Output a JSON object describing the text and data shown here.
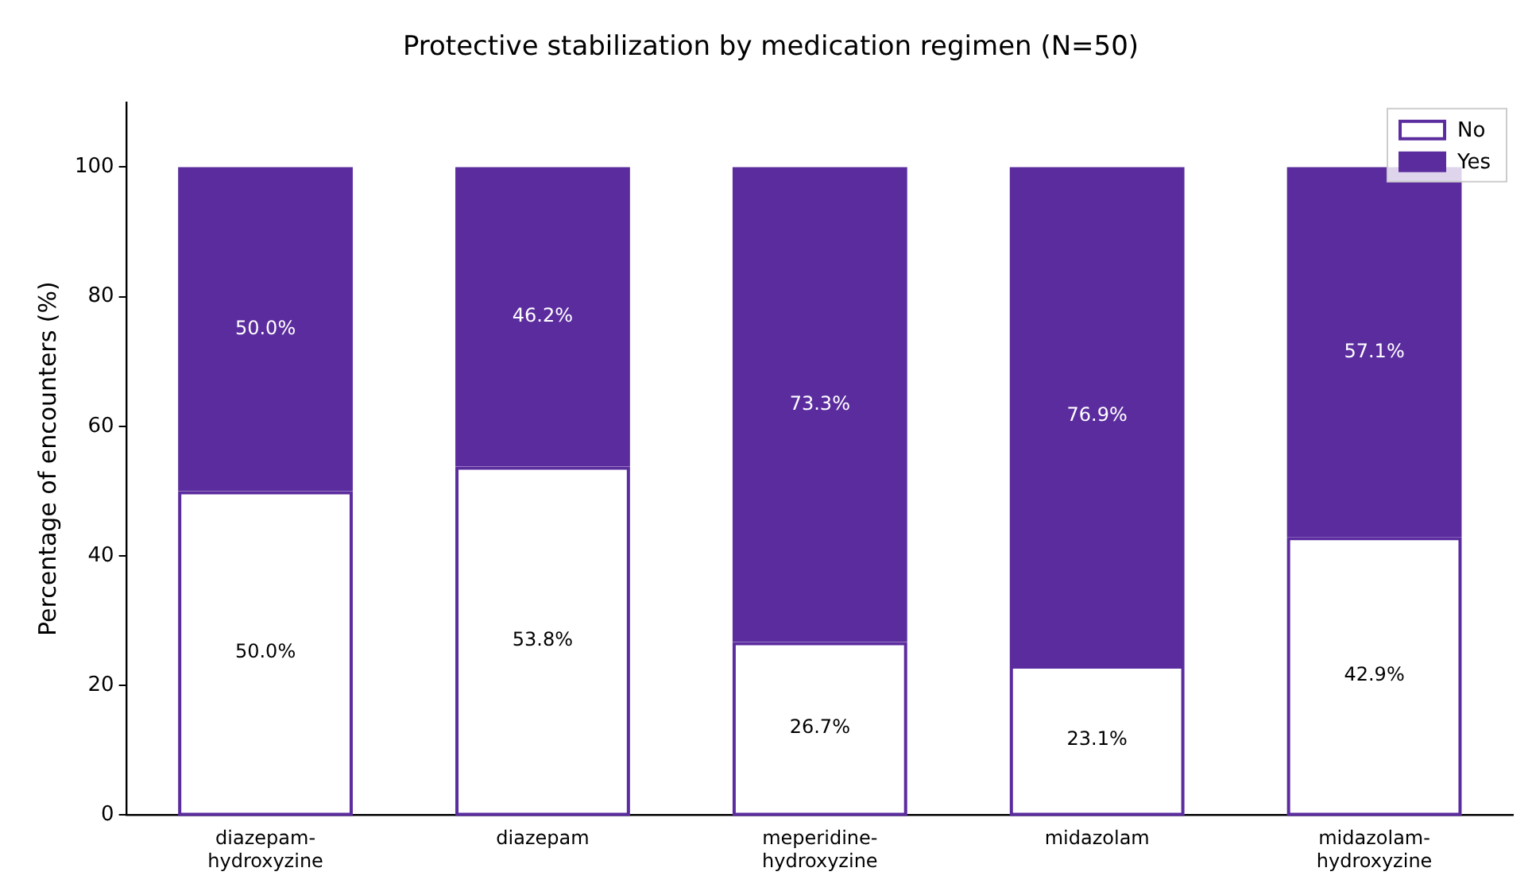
{
  "chart_data": {
    "type": "bar",
    "title": "Protective stabilization by medication regimen (N=50)",
    "ylabel": "Percentage of encounters (%)",
    "categories": [
      "diazepam-hydroxyzine",
      "diazepam",
      "meperidine-hydroxyzine",
      "midazolam",
      "midazolam-hydroxyzine"
    ],
    "stacked": true,
    "ylim": [
      0,
      110
    ],
    "yticks": [
      0,
      20,
      40,
      60,
      80,
      100
    ],
    "grid": false,
    "legend": "top right",
    "series": [
      {
        "name": "No",
        "color": "#ffffff",
        "values": [
          50.0,
          53.8,
          26.7,
          23.1,
          42.9
        ],
        "value_labels": [
          "50.0%",
          "53.8%",
          "26.7%",
          "23.1%",
          "42.9%"
        ]
      },
      {
        "name": "Yes",
        "color": "#5b2c9e",
        "values": [
          50.0,
          46.2,
          73.3,
          76.9,
          57.1
        ],
        "value_labels": [
          "50.0%",
          "46.2%",
          "73.3%",
          "76.9%",
          "57.1%"
        ]
      }
    ]
  }
}
